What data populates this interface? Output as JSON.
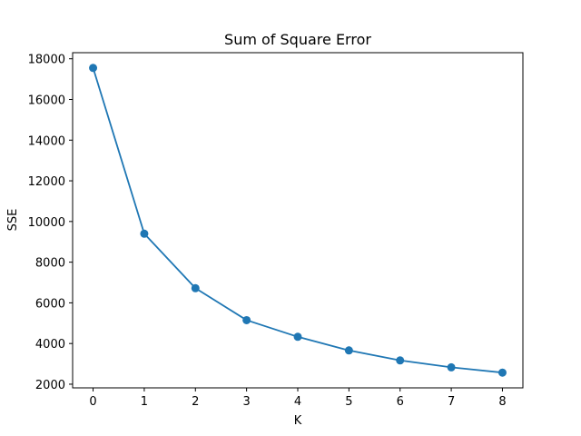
{
  "chart_data": {
    "type": "line",
    "title": "Sum of Square Error",
    "xlabel": "K",
    "ylabel": "SSE",
    "x": [
      0,
      1,
      2,
      3,
      4,
      5,
      6,
      7,
      8
    ],
    "series": [
      {
        "values": [
          17550,
          9400,
          6720,
          5150,
          4330,
          3660,
          3170,
          2830,
          2570
        ],
        "color": "#1f77b4",
        "marker": "circle"
      }
    ],
    "xlim": [
      -0.4,
      8.4
    ],
    "ylim": [
      1820,
      18300
    ],
    "xticks": [
      0,
      1,
      2,
      3,
      4,
      5,
      6,
      7,
      8
    ],
    "yticks": [
      2000,
      4000,
      6000,
      8000,
      10000,
      12000,
      14000,
      16000,
      18000
    ],
    "grid": false,
    "legend": false
  }
}
